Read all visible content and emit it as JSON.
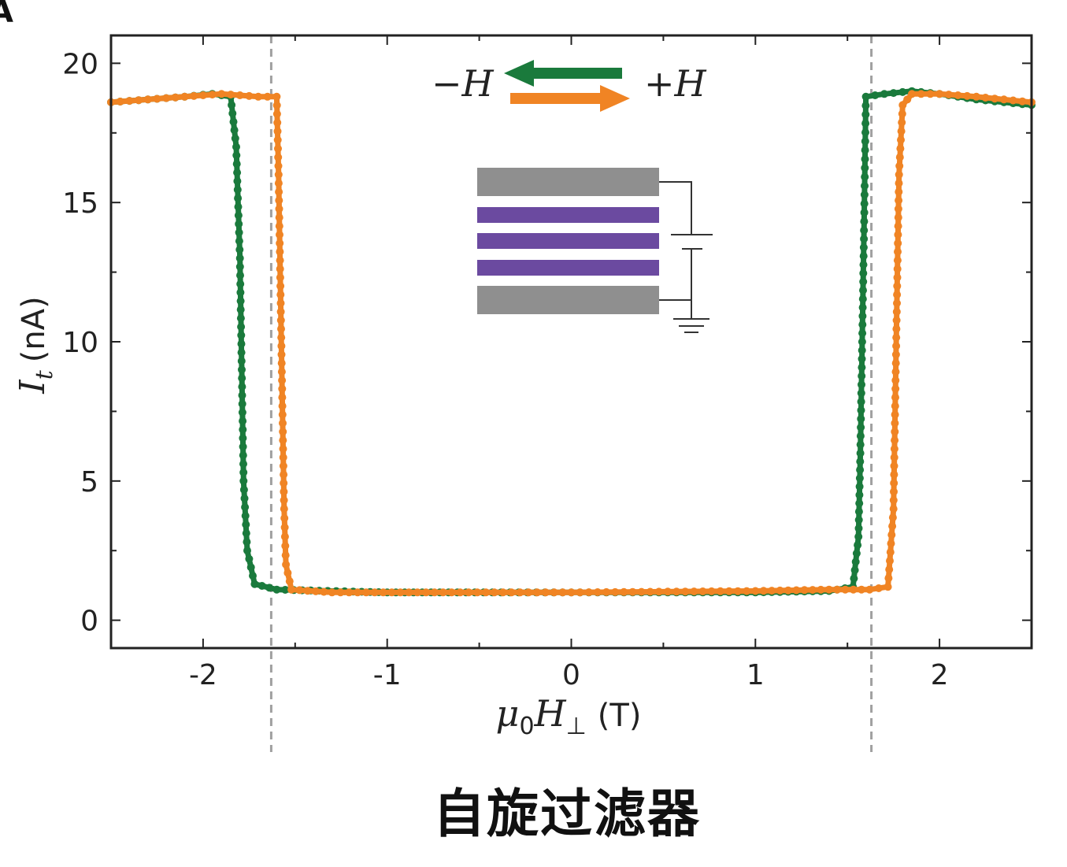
{
  "panel_label": "A",
  "caption": "自旋过滤器",
  "colors": {
    "green": "#1a7a3c",
    "orange": "#f08424",
    "layer_gray": "#8f8f8f",
    "layer_purple": "#6b4aa0",
    "axis": "#222222",
    "dashed": "#a0a0a0"
  },
  "legend": {
    "minus_label": "−H",
    "plus_label": "+H",
    "green_arrow_direction": "left",
    "orange_arrow_direction": "right"
  },
  "inset": {
    "layers": [
      "gray",
      "purple",
      "purple",
      "purple",
      "gray"
    ],
    "circuit": [
      "battery",
      "ground"
    ]
  },
  "chart_data": {
    "type": "line",
    "xlabel": "μ0H⊥ (T)",
    "ylabel": "It (nA)",
    "xlim": [
      -2.5,
      2.5
    ],
    "ylim": [
      -1,
      21
    ],
    "xticks": [
      -2,
      -1,
      0,
      1,
      2
    ],
    "yticks": [
      0,
      5,
      10,
      15,
      20
    ],
    "xtick_labels": [
      "-2",
      "-1",
      "0",
      "1",
      "2"
    ],
    "ytick_labels": [
      "0",
      "5",
      "10",
      "15",
      "20"
    ],
    "grid": false,
    "dashed_vlines": [
      -1.63,
      1.63
    ],
    "series": [
      {
        "name": "−H",
        "color": "green",
        "points": [
          [
            -2.5,
            18.6
          ],
          [
            -2.3,
            18.7
          ],
          [
            -2.1,
            18.8
          ],
          [
            -1.95,
            18.9
          ],
          [
            -1.85,
            18.8
          ],
          [
            -1.82,
            17.0
          ],
          [
            -1.8,
            13.0
          ],
          [
            -1.79,
            9.0
          ],
          [
            -1.78,
            5.0
          ],
          [
            -1.76,
            2.5
          ],
          [
            -1.72,
            1.3
          ],
          [
            -1.6,
            1.1
          ],
          [
            -1.0,
            1.0
          ],
          [
            0.0,
            1.0
          ],
          [
            1.0,
            1.0
          ],
          [
            1.4,
            1.05
          ],
          [
            1.53,
            1.2
          ],
          [
            1.56,
            3.0
          ],
          [
            1.57,
            6.0
          ],
          [
            1.58,
            10.0
          ],
          [
            1.59,
            14.0
          ],
          [
            1.6,
            18.8
          ],
          [
            1.7,
            18.9
          ],
          [
            1.85,
            19.0
          ],
          [
            2.0,
            18.9
          ],
          [
            2.2,
            18.7
          ],
          [
            2.5,
            18.5
          ]
        ]
      },
      {
        "name": "+H",
        "color": "orange",
        "points": [
          [
            -2.5,
            18.6
          ],
          [
            -2.3,
            18.7
          ],
          [
            -2.1,
            18.8
          ],
          [
            -1.9,
            18.9
          ],
          [
            -1.7,
            18.8
          ],
          [
            -1.6,
            18.8
          ],
          [
            -1.59,
            16.0
          ],
          [
            -1.58,
            12.0
          ],
          [
            -1.57,
            8.0
          ],
          [
            -1.56,
            4.0
          ],
          [
            -1.55,
            2.0
          ],
          [
            -1.52,
            1.1
          ],
          [
            -1.3,
            1.0
          ],
          [
            0.0,
            1.0
          ],
          [
            1.0,
            1.05
          ],
          [
            1.4,
            1.1
          ],
          [
            1.62,
            1.1
          ],
          [
            1.72,
            1.2
          ],
          [
            1.75,
            4.0
          ],
          [
            1.76,
            8.0
          ],
          [
            1.77,
            12.0
          ],
          [
            1.78,
            16.0
          ],
          [
            1.8,
            18.5
          ],
          [
            1.85,
            18.9
          ],
          [
            2.0,
            18.9
          ],
          [
            2.2,
            18.8
          ],
          [
            2.5,
            18.6
          ]
        ]
      }
    ]
  }
}
